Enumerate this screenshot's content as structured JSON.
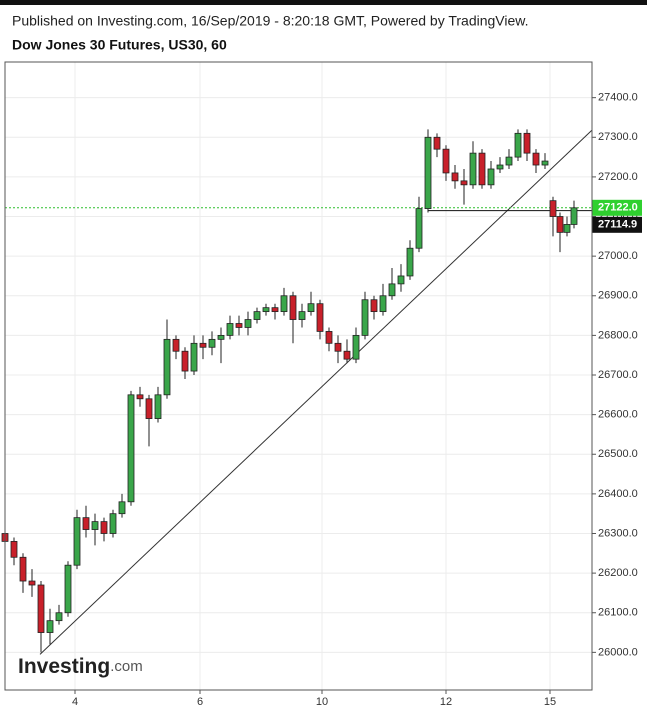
{
  "header": {
    "published": "Published on Investing.com, 16/Sep/2019 - 8:20:18 GMT, Powered by TradingView.",
    "title": "Dow Jones 30 Futures, US30, 60"
  },
  "logo": {
    "brand": "Investing",
    "suffix": ".com"
  },
  "chart_data": {
    "type": "candlestick",
    "xlim": [
      0,
      587
    ],
    "ylim": [
      25905,
      27490
    ],
    "xticks": [
      {
        "value": 70,
        "label": "4"
      },
      {
        "value": 195,
        "label": "6"
      },
      {
        "value": 317,
        "label": "10"
      },
      {
        "value": 441,
        "label": "12"
      },
      {
        "value": 545,
        "label": "15"
      }
    ],
    "yticks": [
      {
        "value": 26000,
        "label": "26000.0"
      },
      {
        "value": 26100,
        "label": "26100.0"
      },
      {
        "value": 26200,
        "label": "26200.0"
      },
      {
        "value": 26300,
        "label": "26300.0"
      },
      {
        "value": 26400,
        "label": "26400.0"
      },
      {
        "value": 26500,
        "label": "26500.0"
      },
      {
        "value": 26600,
        "label": "26600.0"
      },
      {
        "value": 26700,
        "label": "26700.0"
      },
      {
        "value": 26800,
        "label": "26800.0"
      },
      {
        "value": 26900,
        "label": "26900.0"
      },
      {
        "value": 27000,
        "label": "27000.0"
      },
      {
        "value": 27100,
        "label": "27100.0"
      },
      {
        "value": 27200,
        "label": "27200.0"
      },
      {
        "value": 27300,
        "label": "27300.0"
      },
      {
        "value": 27400,
        "label": "27400.0"
      }
    ],
    "grid": true,
    "up_color": "#3aa64a",
    "down_color": "#c8202a",
    "x": [
      0,
      9,
      18,
      27,
      36,
      45,
      54,
      63,
      72,
      81,
      90,
      99,
      108,
      117,
      126,
      135,
      144,
      153,
      162,
      171,
      180,
      189,
      198,
      207,
      216,
      225,
      234,
      243,
      252,
      261,
      270,
      279,
      288,
      297,
      306,
      315,
      324,
      333,
      342,
      351,
      360,
      369,
      378,
      387,
      396,
      405,
      414,
      423,
      432,
      441,
      450,
      459,
      468,
      477,
      486,
      495,
      504,
      513,
      522,
      531,
      540,
      548,
      555,
      562,
      569
    ],
    "open": [
      26300,
      26280,
      26240,
      26180,
      26170,
      26050,
      26080,
      26100,
      26220,
      26340,
      26310,
      26330,
      26300,
      26350,
      26380,
      26650,
      26640,
      26590,
      26650,
      26790,
      26760,
      26710,
      26780,
      26770,
      26790,
      26800,
      26830,
      26820,
      26840,
      26860,
      26870,
      26860,
      26900,
      26840,
      26860,
      26880,
      26810,
      26780,
      26760,
      26740,
      26800,
      26890,
      26860,
      26900,
      26930,
      26950,
      27020,
      27120,
      27300,
      27270,
      27210,
      27190,
      27180,
      27260,
      27180,
      27220,
      27230,
      27250,
      27310,
      27260,
      27230,
      27140,
      27100,
      27060,
      27080
    ],
    "high": [
      26310,
      26290,
      26250,
      26210,
      26180,
      26110,
      26120,
      26230,
      26360,
      26370,
      26350,
      26340,
      26360,
      26400,
      26660,
      26670,
      26650,
      26670,
      26840,
      26800,
      26770,
      26800,
      26800,
      26810,
      26820,
      26850,
      26850,
      26860,
      26870,
      26880,
      26880,
      26920,
      26910,
      26880,
      26910,
      26890,
      26820,
      26800,
      26790,
      26820,
      26910,
      26900,
      26930,
      26970,
      26980,
      27040,
      27150,
      27320,
      27310,
      27280,
      27230,
      27220,
      27290,
      27270,
      27240,
      27250,
      27270,
      27320,
      27320,
      27270,
      27260,
      27150,
      27110,
      27100,
      27140
    ],
    "low": [
      26260,
      26220,
      26150,
      26140,
      26000,
      26020,
      26070,
      26090,
      26210,
      26290,
      26270,
      26280,
      26290,
      26340,
      26370,
      26620,
      26520,
      26580,
      26640,
      26740,
      26690,
      26700,
      26740,
      26750,
      26730,
      26790,
      26800,
      26800,
      26830,
      26850,
      26840,
      26850,
      26780,
      26820,
      26850,
      26790,
      26760,
      26730,
      26730,
      26730,
      26790,
      26840,
      26850,
      26890,
      26910,
      26940,
      27010,
      27110,
      27250,
      27190,
      27170,
      27130,
      27170,
      27170,
      27170,
      27210,
      27220,
      27240,
      27240,
      27210,
      27220,
      27050,
      27010,
      27050,
      27070
    ],
    "close": [
      26280,
      26240,
      26180,
      26170,
      26050,
      26080,
      26100,
      26220,
      26340,
      26310,
      26330,
      26300,
      26350,
      26380,
      26650,
      26640,
      26590,
      26650,
      26790,
      26760,
      26710,
      26780,
      26770,
      26790,
      26800,
      26830,
      26820,
      26840,
      26860,
      26870,
      26860,
      26900,
      26840,
      26860,
      26880,
      26810,
      26780,
      26760,
      26740,
      26800,
      26890,
      26860,
      26900,
      26930,
      26950,
      27020,
      27120,
      27300,
      27270,
      27210,
      27190,
      27180,
      27260,
      27180,
      27220,
      27230,
      27250,
      27310,
      27260,
      27230,
      27240,
      27100,
      27060,
      27080,
      27122
    ],
    "trendline": {
      "x": [
        35,
        587
      ],
      "y": [
        25995,
        27318
      ]
    },
    "last_price": {
      "value": 27122,
      "label": "27122.0"
    },
    "reference_price": 27114.9,
    "reference_start_x": 423
  }
}
